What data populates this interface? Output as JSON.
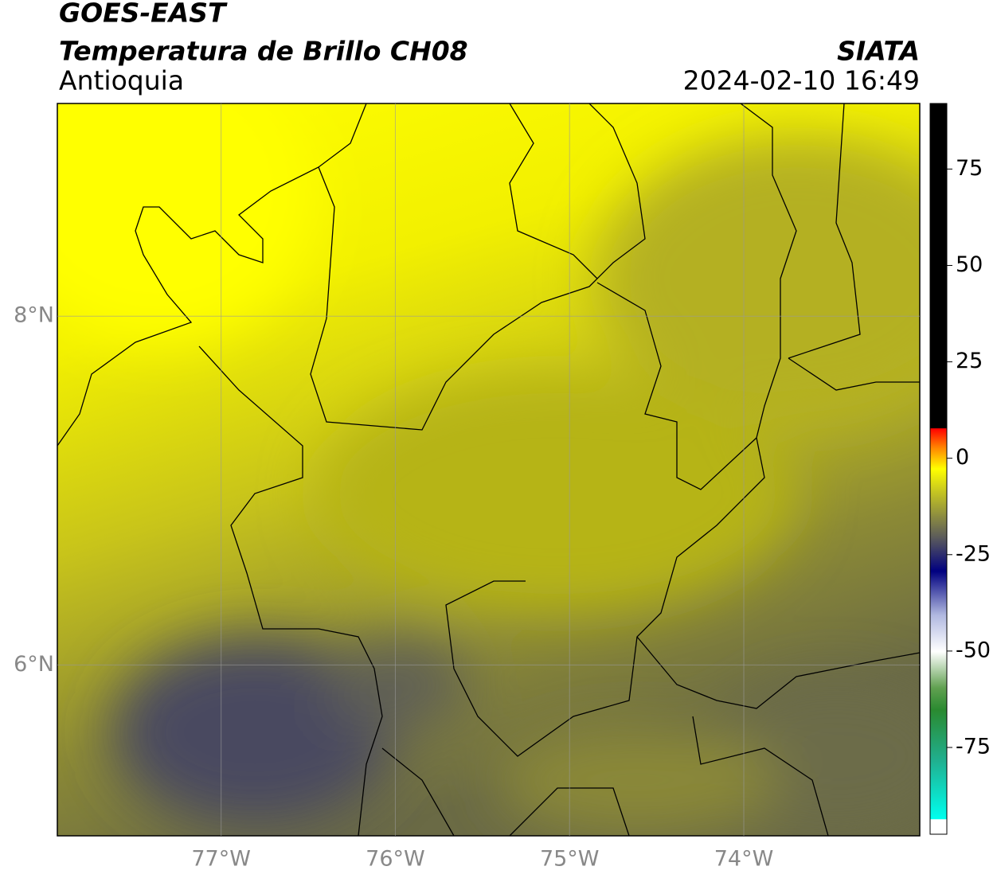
{
  "header": {
    "title": "GOES-EAST",
    "subtitle": "Temperatura de Brillo CH08",
    "region": "Antioquia",
    "source": "SIATA",
    "timestamp": "2024-02-10 16:49"
  },
  "map": {
    "lonlim": [
      -77.94,
      -72.99
    ],
    "latlim": [
      5.02,
      9.22
    ],
    "lon_ticks": [
      {
        "value": -77,
        "label": "77°W"
      },
      {
        "value": -76,
        "label": "76°W"
      },
      {
        "value": -75,
        "label": "75°W"
      },
      {
        "value": -74,
        "label": "74°W"
      }
    ],
    "lat_ticks": [
      {
        "value": 8,
        "label": "8°N"
      },
      {
        "value": 6,
        "label": "6°N"
      }
    ]
  },
  "colorbar": {
    "lim": [
      -97.5,
      92
    ],
    "ticks": [
      -75,
      -50,
      -25,
      0,
      25,
      50,
      75
    ]
  }
}
